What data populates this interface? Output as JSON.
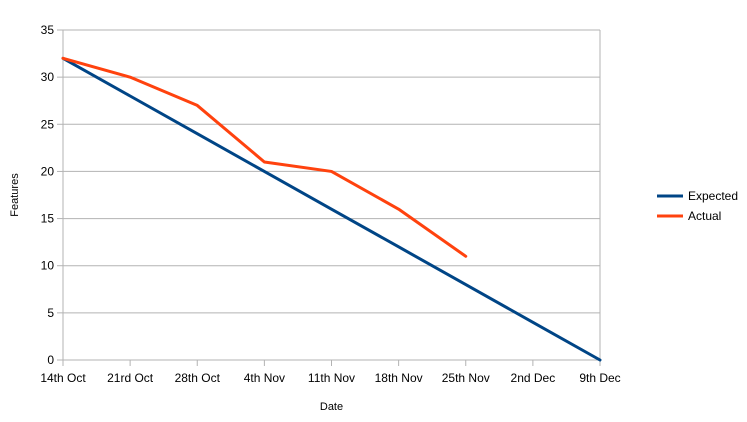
{
  "chart_data": {
    "type": "line",
    "title": "",
    "xlabel": "Date",
    "ylabel": "Features",
    "categories": [
      "14th Oct",
      "21rd Oct",
      "28th Oct",
      "4th Nov",
      "11th Nov",
      "18th Nov",
      "25th Nov",
      "2nd Dec",
      "9th Dec"
    ],
    "ylim": [
      0,
      35
    ],
    "yticks": [
      0,
      5,
      10,
      15,
      20,
      25,
      30,
      35
    ],
    "grid": true,
    "legend_position": "right",
    "series": [
      {
        "name": "Expected",
        "color": "#004586",
        "values": [
          32,
          28,
          24,
          20,
          16,
          12,
          8,
          4,
          0
        ]
      },
      {
        "name": "Actual",
        "color": "#ff420e",
        "values": [
          32,
          30,
          27,
          21,
          20,
          16,
          11,
          null,
          null
        ]
      }
    ]
  }
}
